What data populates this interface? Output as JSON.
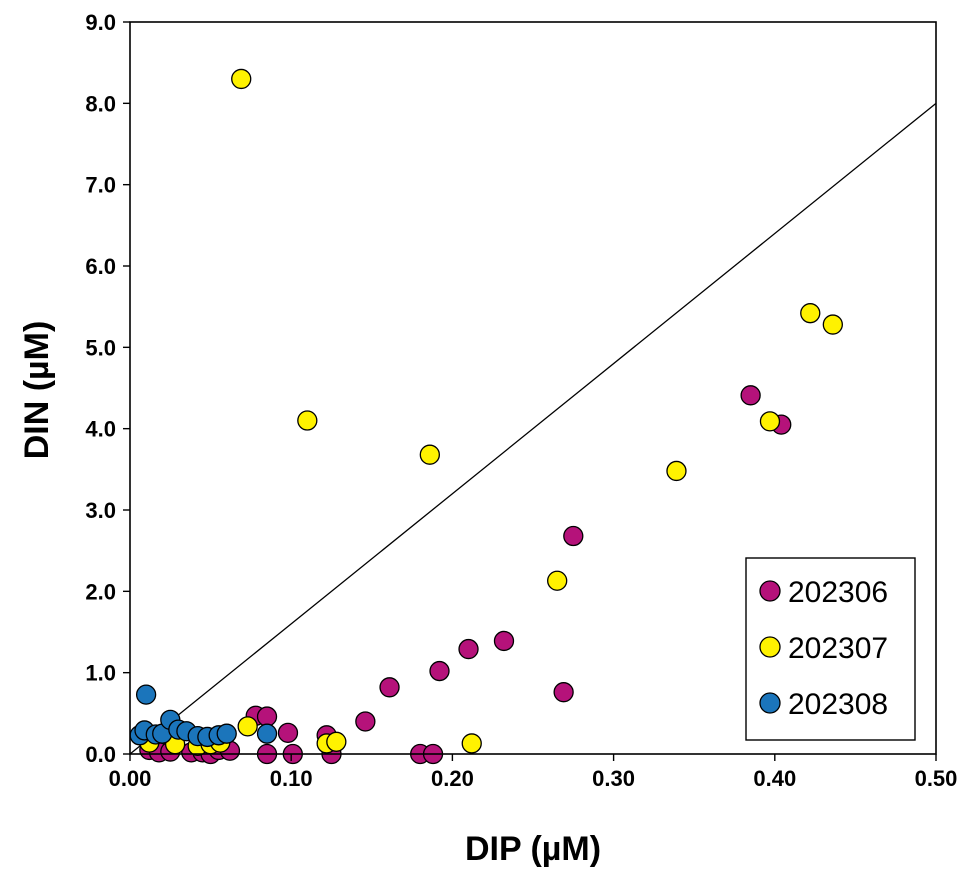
{
  "chart_data": {
    "type": "scatter",
    "title": "",
    "xlabel": "DIP (µM)",
    "ylabel": "DIN (µM)",
    "xlim": [
      0,
      0.5
    ],
    "ylim": [
      0,
      9.0
    ],
    "xticks": [
      "0.00",
      "0.10",
      "0.20",
      "0.30",
      "0.40",
      "0.50"
    ],
    "yticks": [
      "0.0",
      "1.0",
      "2.0",
      "3.0",
      "4.0",
      "5.0",
      "6.0",
      "7.0",
      "8.0",
      "9.0"
    ],
    "grid": false,
    "legend_position": "bottom-right",
    "reference_line": {
      "slope": 16,
      "intercept": 0,
      "label": ""
    },
    "series": [
      {
        "name": "202306",
        "color": "#B5127A",
        "points": [
          [
            0.012,
            0.05
          ],
          [
            0.018,
            0.02
          ],
          [
            0.025,
            0.03
          ],
          [
            0.038,
            0.02
          ],
          [
            0.045,
            0.02
          ],
          [
            0.05,
            0.0
          ],
          [
            0.055,
            0.05
          ],
          [
            0.062,
            0.04
          ],
          [
            0.078,
            0.47
          ],
          [
            0.085,
            0.46
          ],
          [
            0.085,
            0.0
          ],
          [
            0.098,
            0.26
          ],
          [
            0.101,
            0.0
          ],
          [
            0.122,
            0.23
          ],
          [
            0.125,
            0.0
          ],
          [
            0.146,
            0.4
          ],
          [
            0.161,
            0.82
          ],
          [
            0.18,
            0.0
          ],
          [
            0.188,
            0.0
          ],
          [
            0.192,
            1.02
          ],
          [
            0.21,
            1.29
          ],
          [
            0.232,
            1.39
          ],
          [
            0.269,
            0.76
          ],
          [
            0.275,
            2.68
          ],
          [
            0.385,
            4.41
          ],
          [
            0.404,
            4.05
          ]
        ]
      },
      {
        "name": "202307",
        "color": "#FFF200",
        "points": [
          [
            0.069,
            8.3
          ],
          [
            0.11,
            4.1
          ],
          [
            0.186,
            3.68
          ],
          [
            0.422,
            5.42
          ],
          [
            0.436,
            5.28
          ],
          [
            0.397,
            4.09
          ],
          [
            0.339,
            3.48
          ],
          [
            0.265,
            2.13
          ],
          [
            0.212,
            0.13
          ],
          [
            0.122,
            0.13
          ],
          [
            0.128,
            0.15
          ],
          [
            0.073,
            0.34
          ],
          [
            0.012,
            0.14
          ],
          [
            0.028,
            0.12
          ],
          [
            0.042,
            0.1
          ],
          [
            0.05,
            0.12
          ],
          [
            0.056,
            0.14
          ]
        ]
      },
      {
        "name": "202308",
        "color": "#1B75BB",
        "points": [
          [
            0.006,
            0.23
          ],
          [
            0.009,
            0.29
          ],
          [
            0.01,
            0.73
          ],
          [
            0.016,
            0.24
          ],
          [
            0.02,
            0.25
          ],
          [
            0.025,
            0.42
          ],
          [
            0.03,
            0.3
          ],
          [
            0.035,
            0.28
          ],
          [
            0.042,
            0.22
          ],
          [
            0.048,
            0.21
          ],
          [
            0.055,
            0.23
          ],
          [
            0.06,
            0.25
          ],
          [
            0.085,
            0.25
          ]
        ]
      }
    ]
  }
}
